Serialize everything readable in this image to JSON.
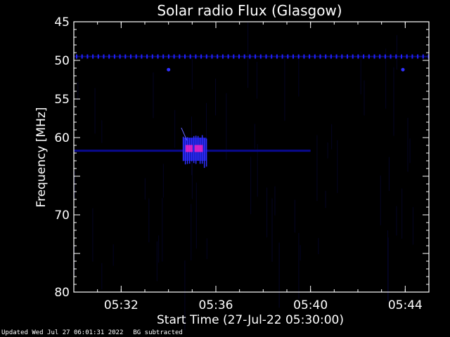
{
  "chart_data": {
    "type": "heatmap",
    "title": "Solar radio Flux (Glasgow)",
    "xlabel": "Start Time (27-Jul-22 05:30:00)",
    "ylabel": "Frequency [MHz]",
    "x_range_minutes": [
      "05:30",
      "05:45"
    ],
    "ylim": [
      45,
      80
    ],
    "y_inverted": true,
    "x_ticks": [
      "05:32",
      "05:36",
      "05:40",
      "05:44"
    ],
    "y_ticks": [
      45,
      50,
      55,
      60,
      70,
      80
    ],
    "background_color": "#000000",
    "axis_color": "#ffffff",
    "features": [
      {
        "kind": "periodic-interference-line",
        "frequency_mhz": 49.5,
        "time_start": "05:30",
        "time_end": "05:45",
        "color": "#2020ff"
      },
      {
        "kind": "interference-dot",
        "frequency_mhz": 51.2,
        "time": "05:34",
        "color": "#3030ff"
      },
      {
        "kind": "interference-dot",
        "frequency_mhz": 51.2,
        "time": "05:43.9",
        "color": "#3030ff"
      },
      {
        "kind": "faint-band",
        "frequency_mhz": 61.7,
        "time_start": "05:30",
        "time_end": "05:40",
        "color": "#0a0a90"
      },
      {
        "kind": "burst",
        "frequency_mhz_start": 60,
        "frequency_mhz_end": 63,
        "time_start": "05:34.6",
        "time_end": "05:35.6",
        "color_peak": "#ff20c0",
        "color": "#3030ff"
      }
    ]
  },
  "footer": {
    "updated": "Updated Wed Jul 27 06:01:31 2022",
    "note": "BG subtracted"
  }
}
